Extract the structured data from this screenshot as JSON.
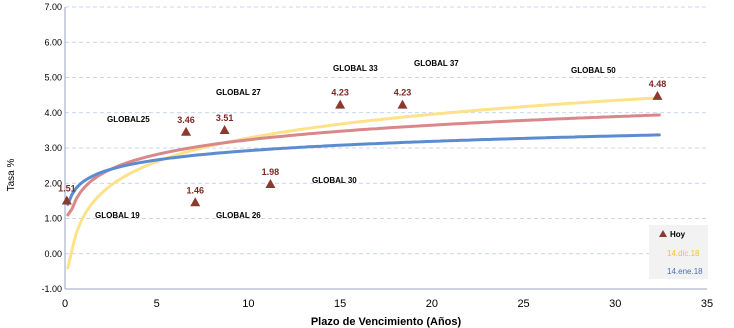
{
  "chart_data": {
    "type": "scatter",
    "xlabel": "Plazo de Vencimiento  (Años)",
    "ylabel": "Tasa %",
    "xlim": [
      0,
      35
    ],
    "ylim": [
      -1.0,
      7.0
    ],
    "x_ticks": [
      "0",
      "5",
      "10",
      "15",
      "20",
      "25",
      "30",
      "35"
    ],
    "y_ticks": [
      "-1.00",
      "0.00",
      "1.00",
      "2.00",
      "3.00",
      "4.00",
      "5.00",
      "6.00",
      "7.00"
    ],
    "grid": "horizontal dashed",
    "legend_position": "bottom-right",
    "series": [
      {
        "name": "Hoy",
        "kind": "markers",
        "color": "#8b3a2f",
        "points": [
          {
            "x": 0.1,
            "y": 1.51,
            "value": "1.51",
            "bond": ""
          },
          {
            "x": 6.6,
            "y": 3.46,
            "value": "3.46",
            "bond": "GLOBAL25"
          },
          {
            "x": 8.7,
            "y": 3.51,
            "value": "3.51",
            "bond": "GLOBAL 27"
          },
          {
            "x": 7.1,
            "y": 1.46,
            "value": "1.46",
            "bond": "GLOBAL 19"
          },
          {
            "x": 11.2,
            "y": 1.98,
            "value": "1.98",
            "bond": "GLOBAL 26"
          },
          {
            "x": 15.0,
            "y": 4.23,
            "value": "4.23",
            "bond": "GLOBAL 30"
          },
          {
            "x": 18.4,
            "y": 4.23,
            "value": "4.23",
            "bond": "GLOBAL 33"
          },
          {
            "x": 32.3,
            "y": 4.48,
            "value": "4.48",
            "bond": "GLOBAL 37"
          }
        ]
      },
      {
        "name": "14.dic.18",
        "kind": "curve",
        "color": "#fde28a",
        "a": 1.05,
        "b": 0.97,
        "min": -0.4
      },
      {
        "name": "",
        "kind": "curve",
        "color": "#d9888a",
        "a": 1.85,
        "b": 0.6,
        "min": 1.1
      },
      {
        "name": "14.ene.18",
        "kind": "curve",
        "color": "#5b8bd0",
        "a": 2.05,
        "b": 0.38,
        "min": 1.4
      }
    ],
    "bond_labels": [
      "GLOBAL25",
      "GLOBAL 27",
      "GLOBAL 19",
      "GLOBAL 26",
      "GLOBAL 30",
      "GLOBAL 33",
      "GLOBAL 37",
      "GLOBAL 50"
    ]
  },
  "legend": {
    "hoy": "Hoy",
    "dic": "14.dic.18",
    "ene": "14.ene.18"
  }
}
